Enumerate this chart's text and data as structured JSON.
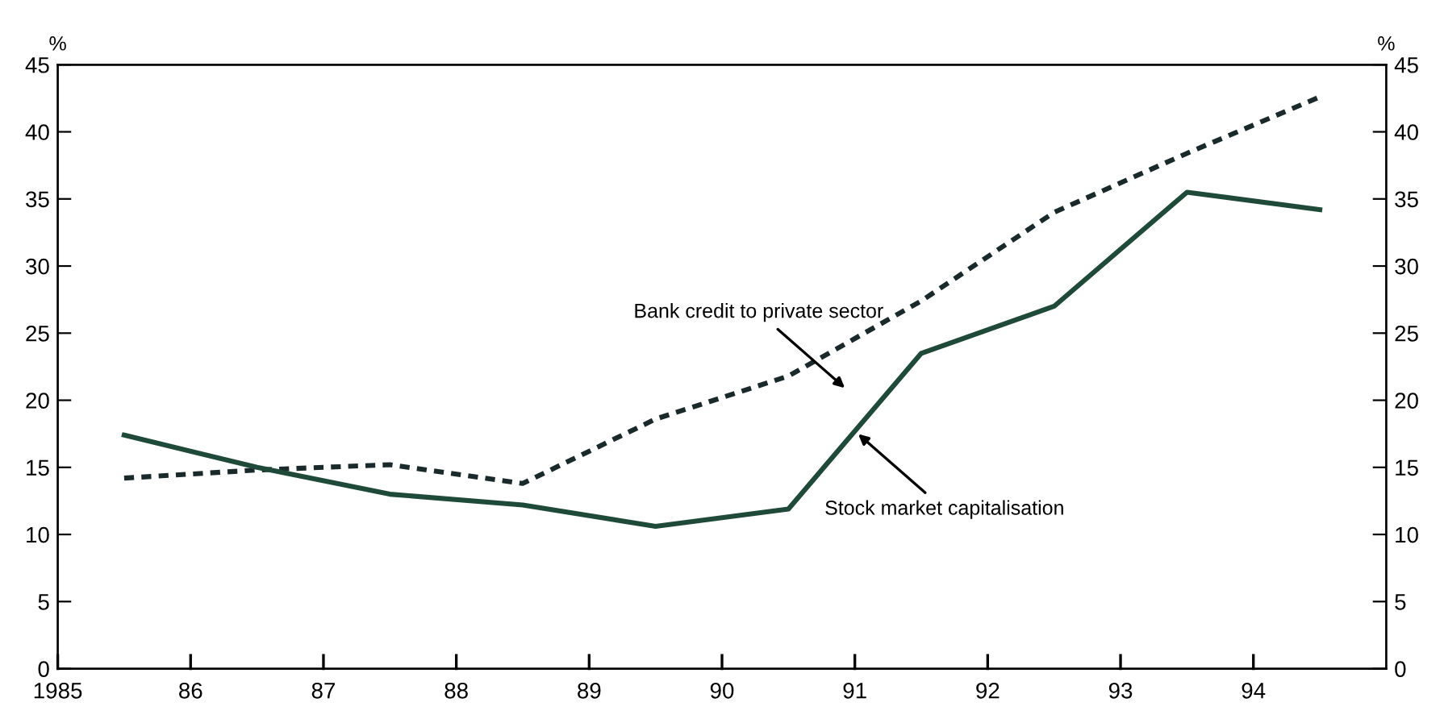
{
  "chart_data": {
    "type": "line",
    "ylabel": "%",
    "y2label": "%",
    "x": [
      1985.5,
      1986.5,
      1987.5,
      1988.5,
      1989.5,
      1990.5,
      1991.5,
      1992.5,
      1993.5,
      1994.5
    ],
    "xlim": [
      1985,
      1995
    ],
    "xticks": [
      {
        "value": 1985,
        "label": "1985"
      },
      {
        "value": 1986,
        "label": "86"
      },
      {
        "value": 1987,
        "label": "87"
      },
      {
        "value": 1988,
        "label": "88"
      },
      {
        "value": 1989,
        "label": "89"
      },
      {
        "value": 1990,
        "label": "90"
      },
      {
        "value": 1991,
        "label": "91"
      },
      {
        "value": 1992,
        "label": "92"
      },
      {
        "value": 1993,
        "label": "93"
      },
      {
        "value": 1994,
        "label": "94"
      }
    ],
    "ylim": [
      0,
      45
    ],
    "yticks": [
      0,
      5,
      10,
      15,
      20,
      25,
      30,
      35,
      40,
      45
    ],
    "y2lim": [
      0,
      45
    ],
    "y2ticks": [
      0,
      5,
      10,
      15,
      20,
      25,
      30,
      35,
      40,
      45
    ],
    "grid": false,
    "legend": false,
    "series": [
      {
        "name": "Bank credit to private sector",
        "color": "#1a2a2a",
        "line_style": "dotted",
        "values": [
          14.2,
          14.8,
          15.2,
          13.8,
          18.6,
          21.8,
          27.4,
          34,
          38.4,
          42.6
        ]
      },
      {
        "name": "Stock market capitalisation",
        "color": "#1f4a3a",
        "line_style": "solid",
        "values": [
          17.4,
          15,
          13,
          12.2,
          10.6,
          11.9,
          23.5,
          27,
          35.5,
          34.2
        ]
      }
    ]
  }
}
